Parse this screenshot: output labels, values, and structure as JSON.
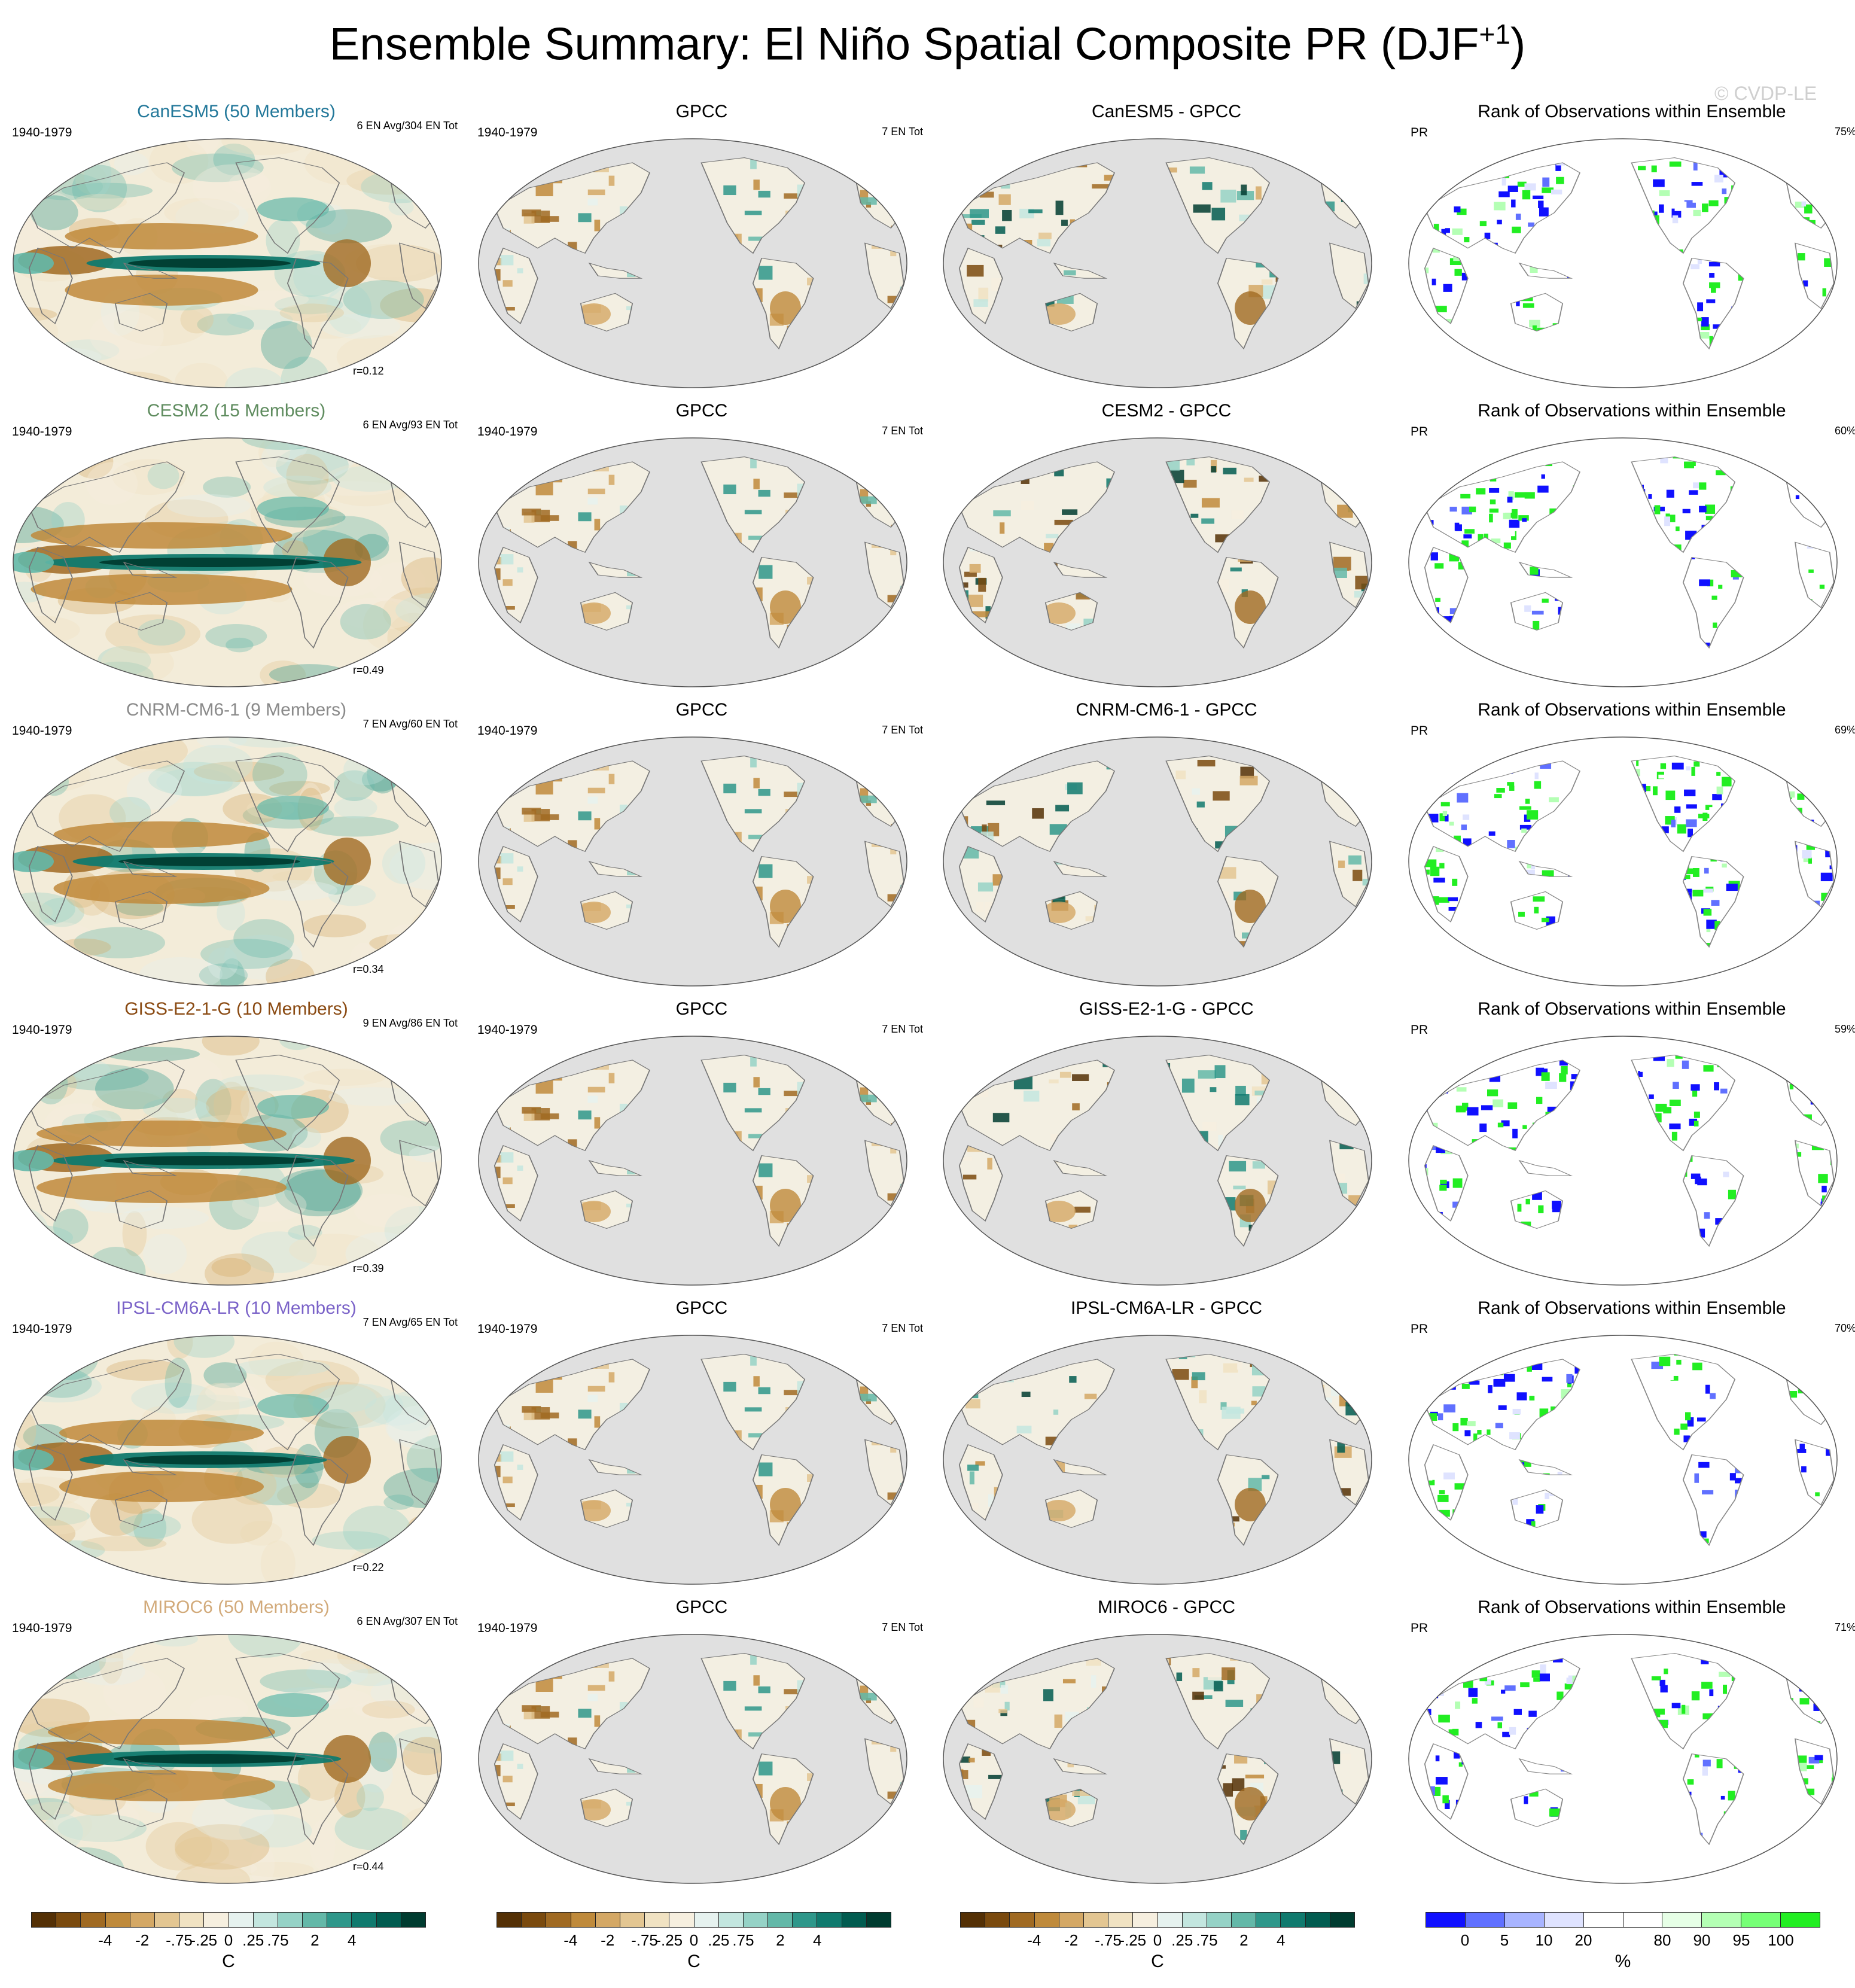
{
  "figure": {
    "title_main": "Ensemble Summary: El Niño Spatial Composite PR (DJF",
    "title_sup": "+1",
    "title_end": ")",
    "watermark": "© CVDP-LE"
  },
  "colors": {
    "brown_green_scale": [
      "#543005",
      "#7a4a0e",
      "#a06a22",
      "#bf8a3b",
      "#d4a865",
      "#e3c692",
      "#f0e2c2",
      "#f6efdf",
      "#e6f2ef",
      "#c3e6df",
      "#95d2c6",
      "#63b8a8",
      "#2e978a",
      "#107a6e",
      "#015c50",
      "#003c30"
    ],
    "rank_scale": [
      "#1010ff",
      "#6070ff",
      "#a8b4ff",
      "#dfe3ff",
      "#ffffff",
      "#ffffff",
      "#e6ffe6",
      "#b4ffb4",
      "#76ff76",
      "#22ee22"
    ],
    "land_outline": "#888888",
    "ocean_obs": "#e0e0e0"
  },
  "rows": [
    {
      "model": "CanESM5 (50 Members)",
      "model_color": "#23789a",
      "period": "1940-1979",
      "en_count": "6 EN Avg/304 EN Tot",
      "corr": "r=0.12",
      "obs_title": "GPCC",
      "obs_count": "7 EN Tot",
      "diff_title": "CanESM5 - GPCC",
      "rank_title": "Rank of Observations within Ensemble",
      "rank_var": "PR",
      "rank_pct": "75%"
    },
    {
      "model": "CESM2 (15 Members)",
      "model_color": "#5f8c5f",
      "period": "1940-1979",
      "en_count": "6 EN Avg/93 EN Tot",
      "corr": "r=0.49",
      "obs_title": "GPCC",
      "obs_count": "7 EN Tot",
      "diff_title": "CESM2 - GPCC",
      "rank_title": "Rank of Observations within Ensemble",
      "rank_var": "PR",
      "rank_pct": "60%"
    },
    {
      "model": "CNRM-CM6-1 (9 Members)",
      "model_color": "#8a8a8a",
      "period": "1940-1979",
      "en_count": "7 EN Avg/60 EN Tot",
      "corr": "r=0.34",
      "obs_title": "GPCC",
      "obs_count": "7 EN Tot",
      "diff_title": "CNRM-CM6-1 - GPCC",
      "rank_title": "Rank of Observations within Ensemble",
      "rank_var": "PR",
      "rank_pct": "69%"
    },
    {
      "model": "GISS-E2-1-G (10 Members)",
      "model_color": "#8a4a12",
      "period": "1940-1979",
      "en_count": "9 EN Avg/86 EN Tot",
      "corr": "r=0.39",
      "obs_title": "GPCC",
      "obs_count": "7 EN Tot",
      "diff_title": "GISS-E2-1-G - GPCC",
      "rank_title": "Rank of Observations within Ensemble",
      "rank_var": "PR",
      "rank_pct": "59%"
    },
    {
      "model": "IPSL-CM6A-LR (10 Members)",
      "model_color": "#7a62c8",
      "period": "1940-1979",
      "en_count": "7 EN Avg/65 EN Tot",
      "corr": "r=0.22",
      "obs_title": "GPCC",
      "obs_count": "7 EN Tot",
      "diff_title": "IPSL-CM6A-LR - GPCC",
      "rank_title": "Rank of Observations within Ensemble",
      "rank_var": "PR",
      "rank_pct": "70%"
    },
    {
      "model": "MIROC6 (50 Members)",
      "model_color": "#d2aa7a",
      "period": "1940-1979",
      "en_count": "6 EN Avg/307 EN Tot",
      "corr": "r=0.44",
      "obs_title": "GPCC",
      "obs_count": "7 EN Tot",
      "diff_title": "MIROC6 - GPCC",
      "rank_title": "Rank of Observations within Ensemble",
      "rank_var": "PR",
      "rank_pct": "71%"
    }
  ],
  "chart_data": [
    {
      "type": "heatmap",
      "description_printed": false,
      "colorbar": {
        "ticks": [
          "-4",
          "-2",
          "-.75",
          "-.25",
          "0",
          ".25",
          ".75",
          "2",
          "4"
        ],
        "unit": "C"
      }
    },
    {
      "type": "heatmap",
      "colorbar": {
        "ticks": [
          "-4",
          "-2",
          "-.75",
          "-.25",
          "0",
          ".25",
          ".75",
          "2",
          "4"
        ],
        "unit": "C"
      }
    },
    {
      "type": "heatmap",
      "colorbar": {
        "ticks": [
          "-4",
          "-2",
          "-.75",
          "-.25",
          "0",
          ".25",
          ".75",
          "2",
          "4"
        ],
        "unit": "C"
      }
    },
    {
      "type": "heatmap",
      "colorbar": {
        "ticks": [
          "0",
          "5",
          "10",
          "20",
          "80",
          "90",
          "95",
          "100"
        ],
        "unit": "%"
      }
    }
  ]
}
